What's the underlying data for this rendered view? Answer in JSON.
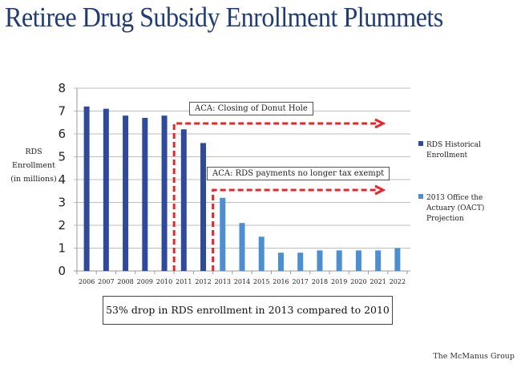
{
  "title": "Retiree Drug Subsidy Enrollment Plummets",
  "footer": "The McManus Group",
  "callout": "53% drop in RDS enrollment in 2013 compared to 2010",
  "annotations": [
    {
      "label": "ACA: Closing of Donut Hole",
      "starts_after": "2010"
    },
    {
      "label": "ACA: RDS payments no longer tax exempt",
      "starts_after": "2012"
    }
  ],
  "colors": {
    "historical": "#2e4a9e",
    "projection": "#4a8fd4",
    "title": "#1f3c78",
    "arrow": "#e8262a",
    "grid": "#bdbdbd"
  },
  "chart_data": {
    "type": "bar",
    "title": "Retiree Drug Subsidy Enrollment Plummets",
    "xlabel": "",
    "ylabel": [
      "RDS",
      "Enrollment",
      "(in millions)"
    ],
    "ylim": [
      0,
      8
    ],
    "yticks": [
      "0",
      "1",
      "2",
      "3",
      "4",
      "5",
      "6",
      "7",
      "8"
    ],
    "grid": true,
    "legend_position": "right",
    "categories": [
      "2006",
      "2007",
      "2008",
      "2009",
      "2010",
      "2011",
      "2012",
      "2013",
      "2014",
      "2015",
      "2016",
      "2017",
      "2018",
      "2019",
      "2020",
      "2021",
      "2022"
    ],
    "series": [
      {
        "name": "RDS Historical Enrollment",
        "color": "#2e4a9e",
        "values": [
          7.2,
          7.1,
          6.8,
          6.7,
          6.8,
          6.2,
          5.6,
          null,
          null,
          null,
          null,
          null,
          null,
          null,
          null,
          null,
          null
        ]
      },
      {
        "name": "2013 Office the Actuary (OACT) Projection",
        "color": "#4a8fd4",
        "values": [
          null,
          null,
          null,
          null,
          null,
          null,
          null,
          3.2,
          2.1,
          1.5,
          0.8,
          0.8,
          0.9,
          0.9,
          0.9,
          0.9,
          1.0
        ]
      }
    ]
  }
}
